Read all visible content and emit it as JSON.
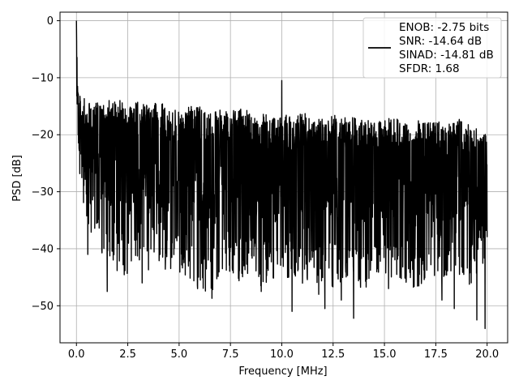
{
  "chart_data": {
    "type": "line",
    "xlabel": "Frequency [MHz]",
    "ylabel": "PSD [dB]",
    "xlim": [
      -0.8,
      21.0
    ],
    "ylim": [
      -56.5,
      1.5
    ],
    "xticks": [
      0.0,
      2.5,
      5.0,
      7.5,
      10.0,
      12.5,
      15.0,
      17.5,
      20.0
    ],
    "xtick_labels": [
      "0.0",
      "2.5",
      "5.0",
      "7.5",
      "10.0",
      "12.5",
      "15.0",
      "17.5",
      "20.0"
    ],
    "yticks": [
      0,
      -10,
      -20,
      -30,
      -40,
      -50
    ],
    "ytick_labels": [
      "0",
      "−10",
      "−20",
      "−30",
      "−40",
      "−50"
    ],
    "grid": true,
    "legend_position": "top-right",
    "series_color": "#000000",
    "series": [
      {
        "legend_lines": [
          "ENOB: -2.75 bits",
          "SNR: -14.64 dB",
          "SINAD: -14.81 dB",
          "SFDR: 1.68"
        ],
        "x": [
          0.0,
          0.02,
          0.04,
          0.06,
          0.08,
          0.1,
          0.15,
          0.2,
          0.25,
          0.3,
          0.35,
          0.4,
          0.5,
          0.6,
          0.7,
          0.8,
          1.0,
          1.2,
          1.5,
          2.0,
          2.5,
          3.0,
          3.5,
          4.0,
          4.5,
          5.0,
          5.5,
          6.0,
          6.5,
          7.0,
          7.5,
          8.0,
          8.5,
          9.0,
          9.5,
          10.0,
          10.5,
          11.0,
          11.5,
          12.0,
          12.5,
          13.0,
          13.5,
          14.0,
          14.5,
          15.0,
          15.5,
          16.0,
          16.5,
          17.0,
          17.5,
          18.0,
          18.5,
          19.0,
          19.5,
          20.0
        ],
        "y_upper": [
          0,
          -3,
          -6,
          -8,
          -10,
          -11,
          -12,
          -13,
          -14,
          -15,
          -13,
          -14,
          -16,
          -14,
          -13,
          -15,
          -14,
          -15,
          -14,
          -13,
          -15,
          -14,
          -15,
          -14,
          -15,
          -16,
          -15,
          -15,
          -16,
          -15,
          -16,
          -15,
          -16,
          -16,
          -17,
          -16,
          -17,
          -16,
          -17,
          -17,
          -16,
          -17,
          -17,
          -17,
          -18,
          -17,
          -17,
          -18,
          -17,
          -18,
          -17,
          -18,
          -17,
          -18,
          -19,
          -20
        ],
        "y_lower": [
          -22,
          -24,
          -25,
          -26,
          -27,
          -28,
          -30,
          -31,
          -34,
          -37,
          -35,
          -36,
          -37,
          -38,
          -40,
          -37,
          -39,
          -41,
          -42,
          -44,
          -45,
          -43,
          -44,
          -42,
          -45,
          -44,
          -46,
          -47,
          -48,
          -45,
          -44,
          -46,
          -45,
          -47,
          -45,
          -46,
          -45,
          -48,
          -47,
          -46,
          -47,
          -46,
          -48,
          -47,
          -46,
          -45,
          -45,
          -46,
          -47,
          -46,
          -45,
          -46,
          -45,
          -47,
          -46,
          -41
        ],
        "spikes": [
          {
            "x": 0.55,
            "y": -41
          },
          {
            "x": 1.5,
            "y": -47.5
          },
          {
            "x": 3.2,
            "y": -46
          },
          {
            "x": 5.9,
            "y": -47
          },
          {
            "x": 6.6,
            "y": -48.7
          },
          {
            "x": 9.0,
            "y": -47.5
          },
          {
            "x": 10.0,
            "y": -10.5
          },
          {
            "x": 10.5,
            "y": -51
          },
          {
            "x": 11.8,
            "y": -48
          },
          {
            "x": 12.1,
            "y": -50.5
          },
          {
            "x": 12.9,
            "y": -49
          },
          {
            "x": 13.5,
            "y": -52.2
          },
          {
            "x": 15.2,
            "y": -47
          },
          {
            "x": 17.8,
            "y": -49
          },
          {
            "x": 18.4,
            "y": -50.5
          },
          {
            "x": 19.5,
            "y": -52.5
          },
          {
            "x": 19.9,
            "y": -54
          }
        ]
      }
    ]
  }
}
